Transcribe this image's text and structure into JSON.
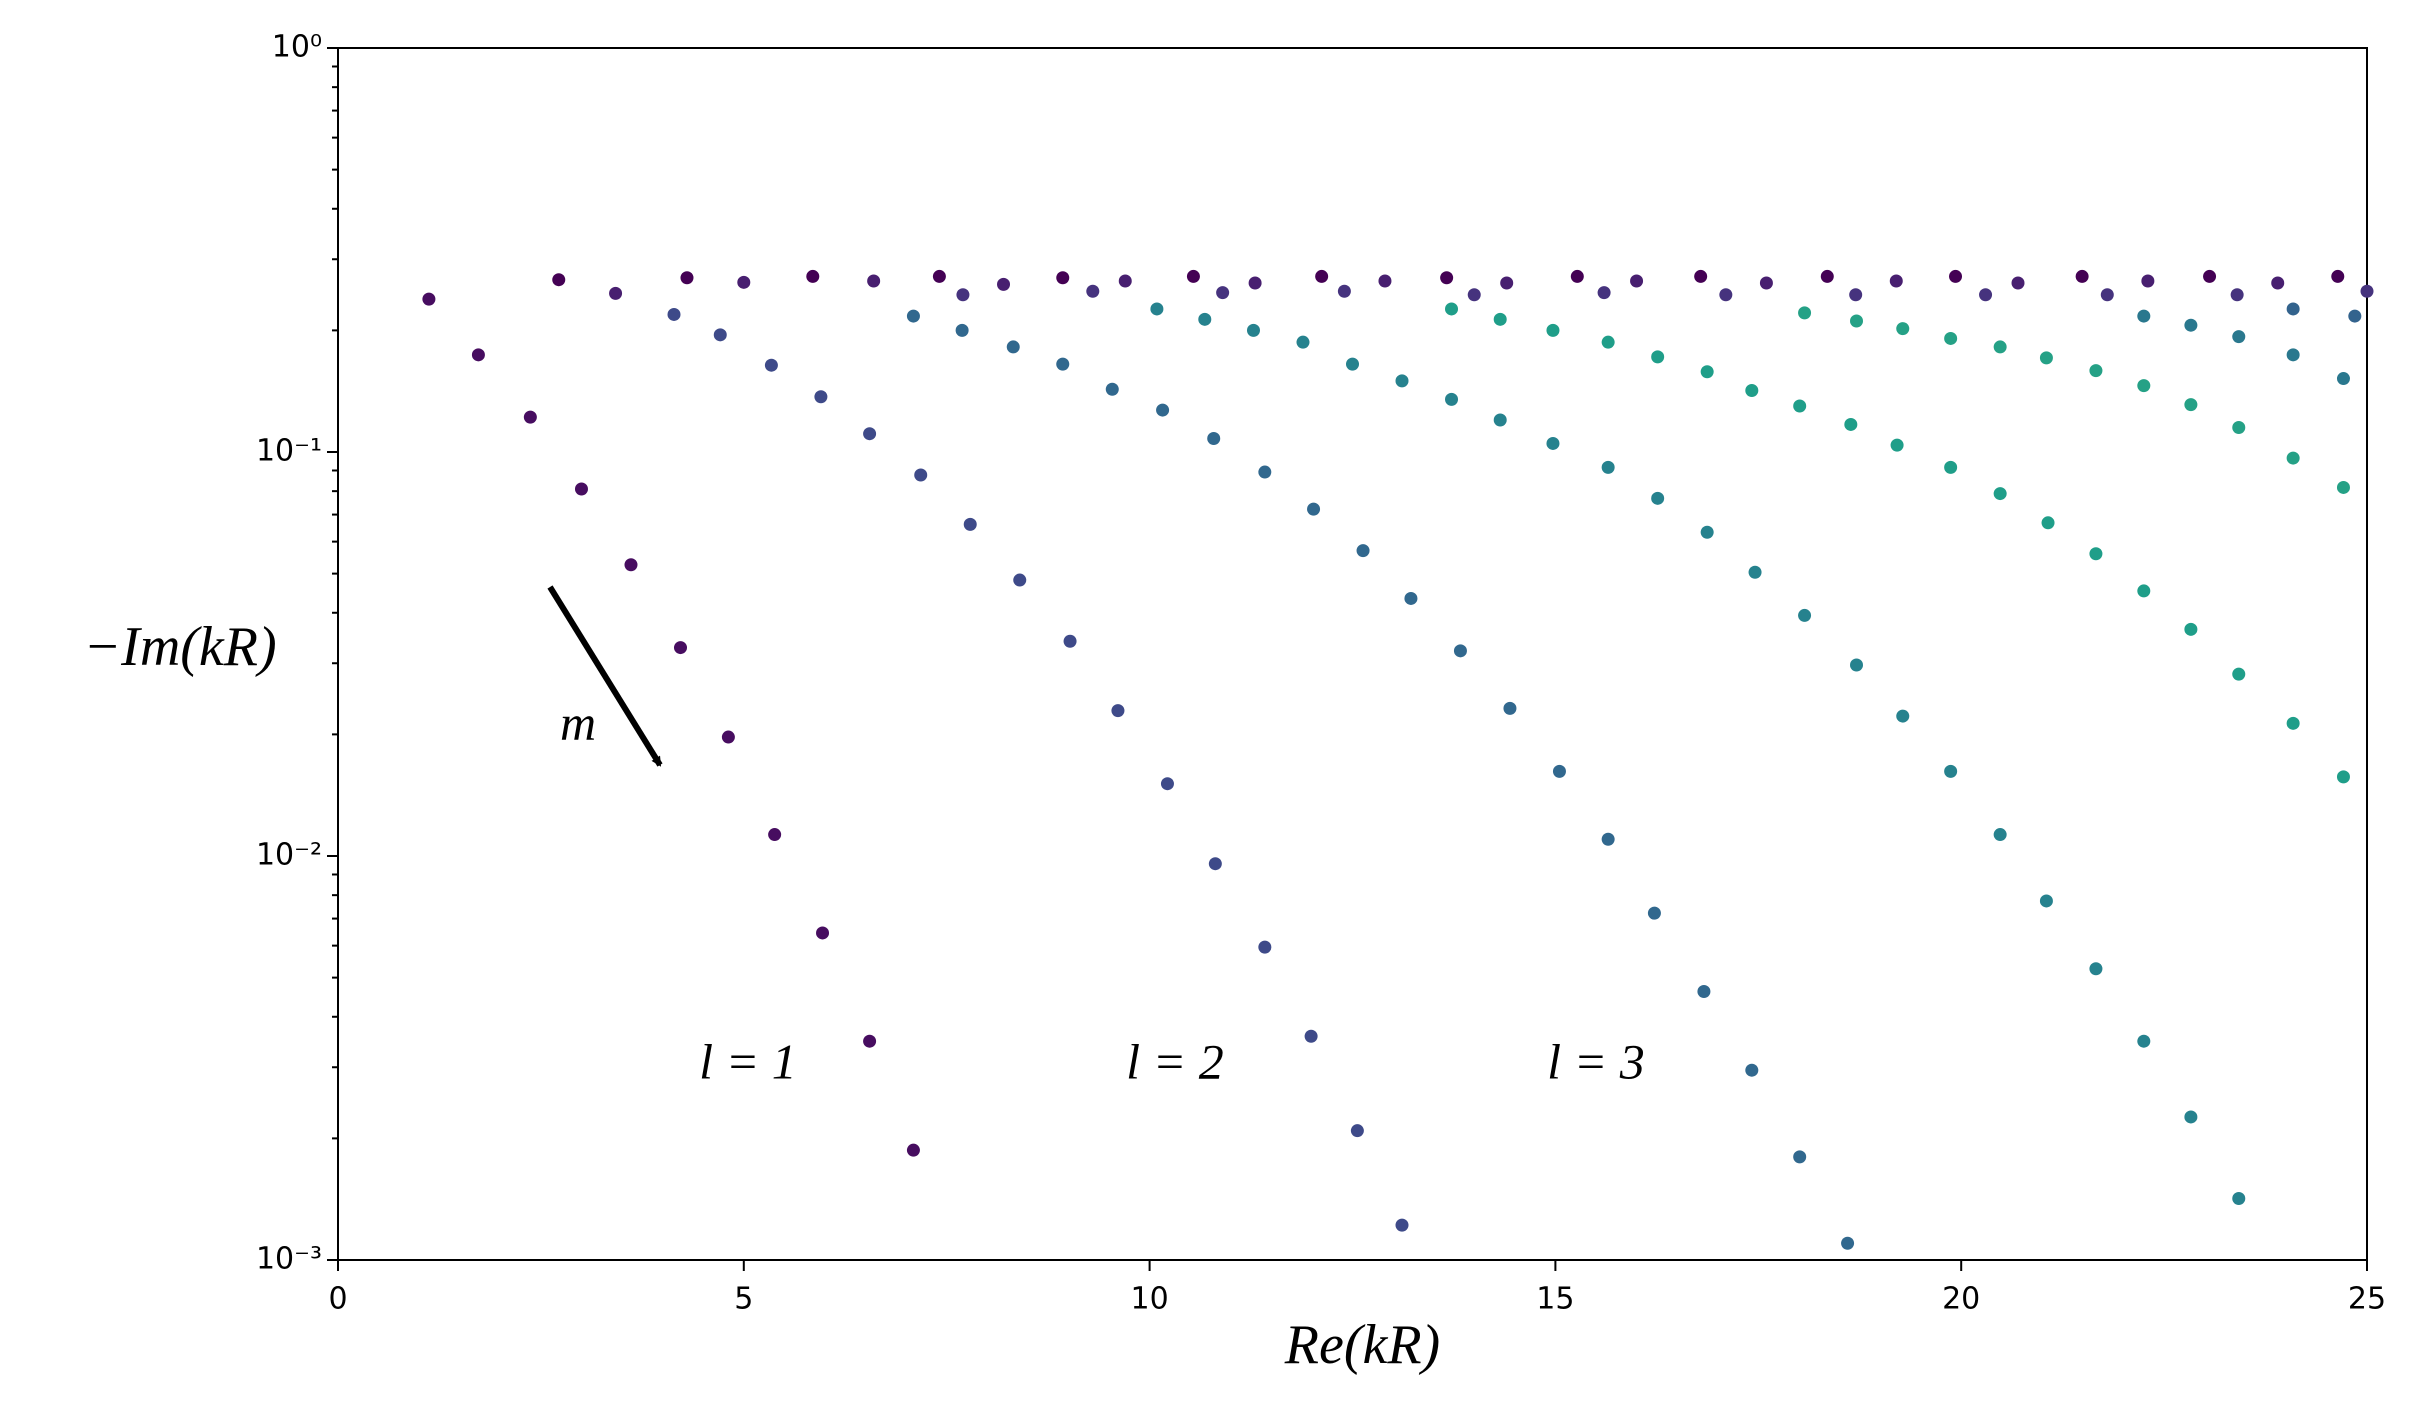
{
  "chart_data": {
    "type": "scatter",
    "xlabel": "Re(kR)",
    "ylabel": "−Im(kR)",
    "annotations": [
      "l = 1",
      "l = 2",
      "l = 3",
      "m"
    ],
    "log_y": true,
    "xlim": [
      0,
      25
    ],
    "xticks": [
      0,
      5,
      10,
      15,
      20,
      25
    ],
    "ylim": [
      0.001,
      1
    ],
    "yticks": [
      {
        "value": 0.001,
        "label": "10⁻³"
      },
      {
        "value": 0.01,
        "label": "10⁻²"
      },
      {
        "value": 0.1,
        "label": "10⁻¹"
      },
      {
        "value": 1,
        "label": "10⁰"
      }
    ],
    "series": [
      {
        "color": "#470d60",
        "x": [
          1.12,
          1.73,
          2.37,
          3.0,
          3.61,
          4.22,
          4.81,
          5.38,
          5.97,
          6.55,
          7.09
        ],
        "values": [
          0.239,
          0.174,
          0.122,
          0.081,
          0.0526,
          0.0328,
          0.0197,
          0.0113,
          0.00645,
          0.00348,
          0.00187
        ]
      },
      {
        "color": "#3e4a89",
        "x": [
          4.14,
          4.71,
          5.34,
          5.95,
          6.55,
          7.18,
          7.79,
          8.4,
          9.02,
          9.61,
          10.22,
          10.81,
          11.42,
          11.99,
          12.56,
          13.11
        ],
        "values": [
          0.219,
          0.195,
          0.164,
          0.137,
          0.111,
          0.0877,
          0.0662,
          0.0482,
          0.034,
          0.0229,
          0.0151,
          0.00957,
          0.00595,
          0.00358,
          0.00209,
          0.00122
        ]
      },
      {
        "color": "#31688e",
        "x": [
          7.09,
          7.69,
          8.32,
          8.93,
          9.54,
          10.16,
          10.79,
          11.42,
          12.02,
          12.63,
          13.22,
          13.83,
          14.44,
          15.05,
          15.65,
          16.22,
          16.83,
          17.42,
          18.01,
          18.6
        ],
        "values": [
          0.217,
          0.2,
          0.182,
          0.165,
          0.143,
          0.127,
          0.108,
          0.0892,
          0.0722,
          0.057,
          0.0434,
          0.0322,
          0.0232,
          0.0162,
          0.011,
          0.00722,
          0.00462,
          0.00295,
          0.0018,
          0.0011
        ]
      },
      {
        "color": "#26828e",
        "x": [
          10.09,
          10.68,
          11.28,
          11.89,
          12.5,
          13.11,
          13.72,
          14.32,
          14.97,
          15.65,
          16.26,
          16.87,
          17.46,
          18.07,
          18.71,
          19.28,
          19.87,
          20.48,
          21.05,
          21.66,
          22.25,
          22.83,
          23.42
        ],
        "values": [
          0.226,
          0.213,
          0.2,
          0.187,
          0.165,
          0.15,
          0.135,
          0.12,
          0.105,
          0.0916,
          0.0768,
          0.0633,
          0.0504,
          0.0394,
          0.0297,
          0.0222,
          0.0162,
          0.0113,
          0.00774,
          0.00526,
          0.00348,
          0.00226,
          0.00142
        ]
      },
      {
        "color": "#1f9e89",
        "x": [
          13.72,
          14.32,
          14.97,
          15.65,
          16.26,
          16.87,
          17.42,
          18.01,
          18.64,
          19.21,
          19.87,
          20.48,
          21.07,
          21.66,
          22.25,
          22.83,
          23.42,
          24.09,
          24.71
        ],
        "values": [
          0.226,
          0.213,
          0.2,
          0.187,
          0.172,
          0.158,
          0.142,
          0.13,
          0.117,
          0.104,
          0.0916,
          0.0789,
          0.0668,
          0.056,
          0.0453,
          0.0364,
          0.0282,
          0.0213,
          0.0157
        ]
      },
      {
        "color": "#25a186",
        "x": [
          18.07,
          18.71,
          19.28,
          19.87,
          20.48,
          21.05,
          21.66,
          22.25,
          22.83,
          23.42,
          24.09,
          24.71
        ],
        "values": [
          0.221,
          0.211,
          0.202,
          0.191,
          0.182,
          0.171,
          0.159,
          0.146,
          0.131,
          0.115,
          0.0966,
          0.0817
        ]
      },
      {
        "color": "#2a788e",
        "x": [
          22.25,
          22.83,
          23.42,
          24.09,
          24.71
        ],
        "values": [
          0.217,
          0.206,
          0.193,
          0.174,
          0.152
        ]
      },
      {
        "color": "#33638d",
        "x": [
          24.09,
          24.85
        ],
        "values": [
          0.226,
          0.217
        ]
      },
      {
        "color": "#440154",
        "x": [
          2.72,
          4.3,
          5.85,
          7.41,
          8.93,
          10.54,
          12.12,
          13.66,
          15.27,
          16.79,
          18.35,
          19.93,
          21.49,
          23.06,
          24.64
        ],
        "values": [
          0.267,
          0.27,
          0.272,
          0.272,
          0.27,
          0.272,
          0.272,
          0.27,
          0.272,
          0.272,
          0.272,
          0.272,
          0.272,
          0.272,
          0.272
        ]
      },
      {
        "color": "#481f70",
        "x": [
          3.42,
          5.0,
          6.6,
          8.2,
          9.7,
          11.3,
          12.9,
          14.4,
          16.0,
          17.6,
          19.2,
          20.7,
          22.3,
          23.9
        ],
        "values": [
          0.247,
          0.263,
          0.265,
          0.26,
          0.265,
          0.262,
          0.265,
          0.262,
          0.265,
          0.262,
          0.265,
          0.262,
          0.265,
          0.262
        ]
      },
      {
        "color": "#46337e",
        "x": [
          7.7,
          9.3,
          10.9,
          12.4,
          14.0,
          15.6,
          17.1,
          18.7,
          20.3,
          21.8,
          23.4,
          25.0
        ],
        "values": [
          0.245,
          0.25,
          0.248,
          0.25,
          0.245,
          0.248,
          0.245,
          0.245,
          0.245,
          0.245,
          0.245,
          0.25
        ]
      }
    ]
  }
}
